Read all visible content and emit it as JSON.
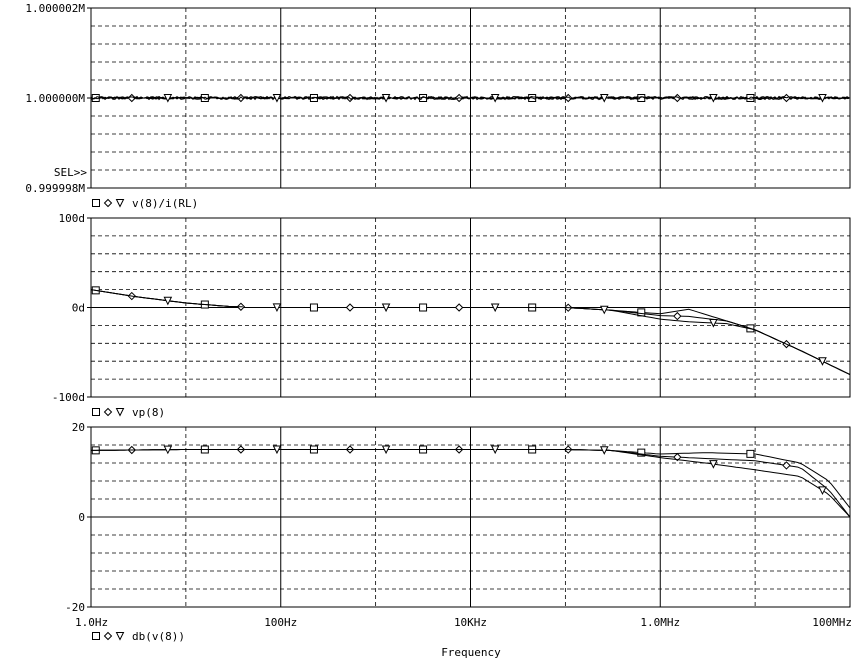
{
  "chart_data": [
    {
      "type": "line",
      "panel": "top",
      "title": "",
      "xlabel": "Frequency",
      "ylabel": "",
      "x_scale": "log",
      "xlim": [
        1,
        100000000
      ],
      "ylim": [
        0.999998,
        1.000002
      ],
      "y_tick_labels": [
        "1.000002M",
        "1.000000M",
        "0.999998M"
      ],
      "y_tick_values": [
        1.000002,
        1.0,
        0.999998
      ],
      "sel_marker": "SEL>>",
      "legend_label": "v(8)/i(RL)",
      "legend_markers": [
        "square",
        "diamond",
        "triangle-down"
      ],
      "series": [
        {
          "marker": "square",
          "x": [
            1,
            100000000
          ],
          "y": [
            1.0,
            1.0
          ]
        },
        {
          "marker": "diamond",
          "x": [
            1,
            100000000
          ],
          "y": [
            1.0,
            1.0
          ]
        },
        {
          "marker": "triangle-down",
          "x": [
            1,
            100000000
          ],
          "y": [
            1.0,
            1.0
          ]
        }
      ]
    },
    {
      "type": "line",
      "panel": "middle",
      "title": "",
      "x_scale": "log",
      "xlim": [
        1,
        100000000
      ],
      "ylim": [
        -100,
        100
      ],
      "y_tick_labels": [
        "100d",
        "0d",
        "-100d"
      ],
      "y_tick_values": [
        100,
        0,
        -100
      ],
      "legend_label": "vp(8)",
      "legend_markers": [
        "square",
        "diamond",
        "triangle-down"
      ],
      "series": [
        {
          "marker": "square",
          "x": [
            1,
            3,
            10,
            30,
            100,
            1000,
            10000,
            100000,
            300000,
            1000000,
            2000000,
            5000000,
            10000000,
            30000000,
            100000000
          ],
          "y": [
            20,
            12,
            5,
            1,
            0,
            0,
            0,
            0,
            -3,
            -7,
            -2,
            -15,
            -25,
            -48,
            -75
          ]
        },
        {
          "marker": "diamond",
          "x": [
            1,
            3,
            10,
            30,
            100,
            1000,
            10000,
            100000,
            300000,
            1000000,
            2000000,
            5000000,
            10000000,
            30000000,
            100000000
          ],
          "y": [
            20,
            12,
            5,
            1,
            0,
            0,
            0,
            0,
            -3,
            -9,
            -10,
            -15,
            -25,
            -48,
            -75
          ]
        },
        {
          "marker": "triangle-down",
          "x": [
            1,
            3,
            10,
            30,
            100,
            1000,
            10000,
            100000,
            300000,
            1000000,
            2000000,
            5000000,
            10000000,
            30000000,
            100000000
          ],
          "y": [
            20,
            12,
            5,
            1,
            0,
            0,
            0,
            0,
            -3,
            -13,
            -16,
            -18,
            -25,
            -48,
            -75
          ]
        }
      ]
    },
    {
      "type": "line",
      "panel": "bottom",
      "title": "",
      "x_scale": "log",
      "xlim": [
        1,
        100000000
      ],
      "ylim": [
        -20,
        20
      ],
      "y_tick_labels": [
        "20",
        "0",
        "-20"
      ],
      "y_tick_values": [
        20,
        0,
        -20
      ],
      "legend_label": "db(v(8))",
      "legend_markers": [
        "square",
        "diamond",
        "triangle-down"
      ],
      "x_tick_labels": [
        "1.0Hz",
        "100Hz",
        "10KHz",
        "1.0MHz",
        "100MHz"
      ],
      "x_tick_values": [
        1,
        100,
        10000,
        1000000,
        100000000
      ],
      "series": [
        {
          "marker": "square",
          "x": [
            1,
            10,
            100,
            1000,
            10000,
            100000,
            300000,
            1000000,
            3000000,
            10000000,
            30000000,
            60000000,
            100000000
          ],
          "y": [
            14.8,
            15,
            15,
            15,
            15,
            15,
            14.8,
            14,
            14.3,
            14,
            12,
            8,
            2
          ]
        },
        {
          "marker": "diamond",
          "x": [
            1,
            10,
            100,
            1000,
            10000,
            100000,
            300000,
            1000000,
            3000000,
            10000000,
            30000000,
            60000000,
            100000000
          ],
          "y": [
            14.8,
            15,
            15,
            15,
            15,
            15,
            14.8,
            13.5,
            13,
            12.5,
            11,
            6,
            0
          ]
        },
        {
          "marker": "triangle-down",
          "x": [
            1,
            10,
            100,
            1000,
            10000,
            100000,
            300000,
            1000000,
            3000000,
            10000000,
            30000000,
            60000000,
            100000000
          ],
          "y": [
            14.8,
            15,
            15,
            15,
            15,
            15,
            14.8,
            13.2,
            12,
            10.5,
            9,
            5,
            0
          ]
        }
      ]
    }
  ]
}
